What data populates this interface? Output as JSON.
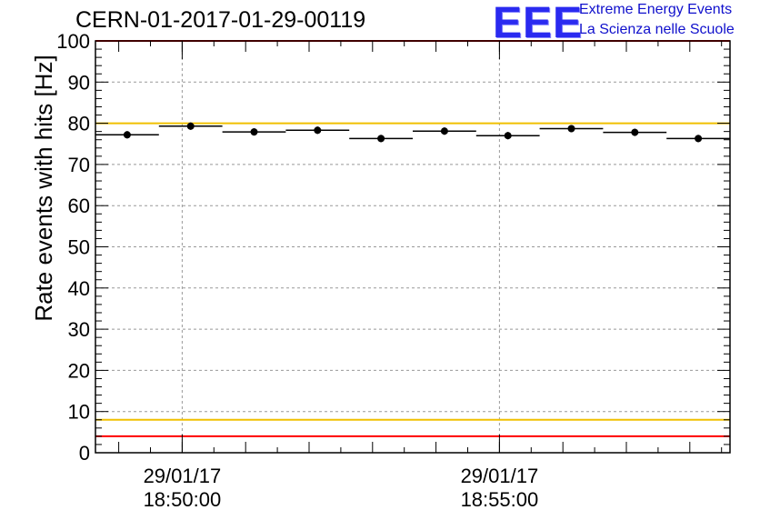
{
  "header": {
    "run_title": "CERN-01-2017-01-29-00119",
    "logo_text": "EEE",
    "logo_line1": "Extreme Energy Events",
    "logo_line2": "La Scienza nelle Scuole",
    "logo_color": "#2a2af0"
  },
  "chart_data": {
    "type": "scatter",
    "title": "CERN-01-2017-01-29-00119",
    "xlabel": "",
    "ylabel": "Rate events with hits [Hz]",
    "ylim": [
      0,
      100
    ],
    "yticks": [
      0,
      10,
      20,
      30,
      40,
      50,
      60,
      70,
      80,
      90,
      100
    ],
    "grid": true,
    "x_time_range": [
      "29/01/17 18:48:38",
      "29/01/17 18:58:38"
    ],
    "xticks": [
      {
        "date": "29/01/17",
        "time": "18:50:00"
      },
      {
        "date": "29/01/17",
        "time": "18:55:00"
      }
    ],
    "series": [
      {
        "bins": [
          {
            "start": "18:48:38",
            "end": "18:49:38",
            "value": 77.2
          },
          {
            "start": "18:49:38",
            "end": "18:50:38",
            "value": 79.3
          },
          {
            "start": "18:50:38",
            "end": "18:51:38",
            "value": 77.9
          },
          {
            "start": "18:51:38",
            "end": "18:52:38",
            "value": 78.3
          },
          {
            "start": "18:52:38",
            "end": "18:53:38",
            "value": 76.3
          },
          {
            "start": "18:53:38",
            "end": "18:54:38",
            "value": 78.1
          },
          {
            "start": "18:54:38",
            "end": "18:55:38",
            "value": 77.0
          },
          {
            "start": "18:55:38",
            "end": "18:56:38",
            "value": 78.7
          },
          {
            "start": "18:56:38",
            "end": "18:57:38",
            "value": 77.8
          },
          {
            "start": "18:57:38",
            "end": "18:58:38",
            "value": 76.3
          }
        ],
        "error": 0.6,
        "color": "#000000"
      }
    ],
    "reference_lines": [
      {
        "value": 100,
        "color": "#ff0000"
      },
      {
        "value": 80,
        "color": "#f0c000"
      },
      {
        "value": 8,
        "color": "#f0c000"
      },
      {
        "value": 4,
        "color": "#ff0000"
      }
    ]
  }
}
